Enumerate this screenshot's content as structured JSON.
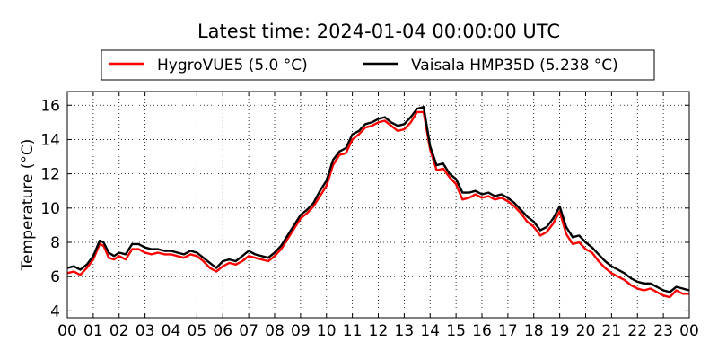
{
  "chart_data": {
    "type": "line",
    "title": "Latest time: 2024-01-04 00:00:00 UTC",
    "ylabel": "Temperature (°C)",
    "xlabel": "",
    "xlim": [
      0,
      24
    ],
    "ylim": [
      3.6,
      16.8
    ],
    "x_ticks": [
      0,
      1,
      2,
      3,
      4,
      5,
      6,
      7,
      8,
      9,
      10,
      11,
      12,
      13,
      14,
      15,
      16,
      17,
      18,
      19,
      20,
      21,
      22,
      23,
      24
    ],
    "x_tick_labels": [
      "00",
      "01",
      "02",
      "03",
      "04",
      "05",
      "06",
      "07",
      "08",
      "09",
      "10",
      "11",
      "12",
      "13",
      "14",
      "15",
      "16",
      "17",
      "18",
      "19",
      "20",
      "21",
      "22",
      "23",
      "00"
    ],
    "y_ticks": [
      4,
      6,
      8,
      10,
      12,
      14,
      16
    ],
    "y_tick_labels": [
      "4",
      "6",
      "8",
      "10",
      "12",
      "14",
      "16"
    ],
    "grid": true,
    "legend_position": "top-center",
    "series": [
      {
        "name": "HygroVUE5 (5.0 °C)",
        "color": "#ff0000",
        "x": [
          0,
          0.25,
          0.5,
          0.75,
          1,
          1.25,
          1.4,
          1.6,
          1.8,
          2,
          2.25,
          2.5,
          2.75,
          3,
          3.25,
          3.5,
          3.75,
          4,
          4.25,
          4.5,
          4.75,
          5,
          5.25,
          5.5,
          5.75,
          6,
          6.25,
          6.5,
          6.75,
          7,
          7.25,
          7.5,
          7.75,
          8,
          8.25,
          8.5,
          8.75,
          9,
          9.25,
          9.5,
          9.75,
          10,
          10.25,
          10.5,
          10.75,
          11,
          11.25,
          11.5,
          11.75,
          12,
          12.25,
          12.5,
          12.75,
          13,
          13.25,
          13.5,
          13.75,
          14,
          14.25,
          14.5,
          14.75,
          15,
          15.25,
          15.5,
          15.75,
          16,
          16.25,
          16.5,
          16.75,
          17,
          17.25,
          17.5,
          17.75,
          18,
          18.25,
          18.5,
          18.75,
          19,
          19.25,
          19.5,
          19.75,
          20,
          20.25,
          20.5,
          20.75,
          21,
          21.25,
          21.5,
          21.75,
          22,
          22.25,
          22.5,
          22.75,
          23,
          23.25,
          23.5,
          23.75,
          24
        ],
        "y": [
          6.2,
          6.3,
          6.1,
          6.5,
          7.0,
          7.9,
          7.8,
          7.1,
          7.0,
          7.2,
          7.0,
          7.6,
          7.6,
          7.4,
          7.3,
          7.4,
          7.3,
          7.3,
          7.2,
          7.1,
          7.3,
          7.2,
          6.9,
          6.5,
          6.3,
          6.6,
          6.8,
          6.7,
          6.9,
          7.2,
          7.1,
          7.0,
          6.9,
          7.2,
          7.6,
          8.2,
          8.8,
          9.4,
          9.7,
          10.1,
          10.7,
          11.3,
          12.5,
          13.1,
          13.2,
          14.0,
          14.3,
          14.7,
          14.8,
          15.0,
          15.1,
          14.8,
          14.5,
          14.6,
          15.0,
          15.6,
          15.6,
          13.4,
          12.2,
          12.3,
          11.8,
          11.4,
          10.5,
          10.6,
          10.8,
          10.6,
          10.7,
          10.5,
          10.6,
          10.4,
          10.1,
          9.7,
          9.2,
          8.9,
          8.4,
          8.6,
          9.1,
          9.8,
          8.5,
          7.9,
          8.0,
          7.6,
          7.4,
          6.9,
          6.5,
          6.2,
          6.0,
          5.8,
          5.5,
          5.3,
          5.2,
          5.3,
          5.1,
          4.9,
          4.8,
          5.2,
          5.0,
          5.0
        ]
      },
      {
        "name": "Vaisala HMP35D (5.238 °C)",
        "color": "#000000",
        "x": [
          0,
          0.25,
          0.5,
          0.75,
          1,
          1.25,
          1.4,
          1.6,
          1.8,
          2,
          2.25,
          2.5,
          2.75,
          3,
          3.25,
          3.5,
          3.75,
          4,
          4.25,
          4.5,
          4.75,
          5,
          5.25,
          5.5,
          5.75,
          6,
          6.25,
          6.5,
          6.75,
          7,
          7.25,
          7.5,
          7.75,
          8,
          8.25,
          8.5,
          8.75,
          9,
          9.25,
          9.5,
          9.75,
          10,
          10.25,
          10.5,
          10.75,
          11,
          11.25,
          11.5,
          11.75,
          12,
          12.25,
          12.5,
          12.75,
          13,
          13.25,
          13.5,
          13.75,
          14,
          14.25,
          14.5,
          14.75,
          15,
          15.25,
          15.5,
          15.75,
          16,
          16.25,
          16.5,
          16.75,
          17,
          17.25,
          17.5,
          17.75,
          18,
          18.25,
          18.5,
          18.75,
          19,
          19.25,
          19.5,
          19.75,
          20,
          20.25,
          20.5,
          20.75,
          21,
          21.25,
          21.5,
          21.75,
          22,
          22.25,
          22.5,
          22.75,
          23,
          23.25,
          23.5,
          23.75,
          24
        ],
        "y": [
          6.5,
          6.6,
          6.4,
          6.7,
          7.2,
          8.1,
          8.0,
          7.4,
          7.2,
          7.4,
          7.3,
          7.9,
          7.9,
          7.7,
          7.6,
          7.6,
          7.5,
          7.5,
          7.4,
          7.3,
          7.5,
          7.4,
          7.1,
          6.8,
          6.5,
          6.9,
          7.0,
          6.9,
          7.2,
          7.5,
          7.3,
          7.2,
          7.1,
          7.4,
          7.8,
          8.4,
          9.0,
          9.6,
          9.9,
          10.3,
          11.0,
          11.6,
          12.8,
          13.3,
          13.5,
          14.3,
          14.5,
          14.9,
          15.0,
          15.2,
          15.3,
          15.0,
          14.8,
          14.9,
          15.3,
          15.8,
          15.9,
          13.6,
          12.5,
          12.6,
          12.0,
          11.7,
          10.9,
          10.9,
          11.0,
          10.8,
          10.9,
          10.7,
          10.8,
          10.6,
          10.3,
          9.9,
          9.5,
          9.2,
          8.7,
          8.9,
          9.4,
          10.1,
          8.9,
          8.3,
          8.4,
          8.0,
          7.7,
          7.3,
          6.9,
          6.6,
          6.4,
          6.2,
          5.9,
          5.7,
          5.6,
          5.6,
          5.4,
          5.2,
          5.1,
          5.4,
          5.3,
          5.2
        ]
      }
    ]
  }
}
